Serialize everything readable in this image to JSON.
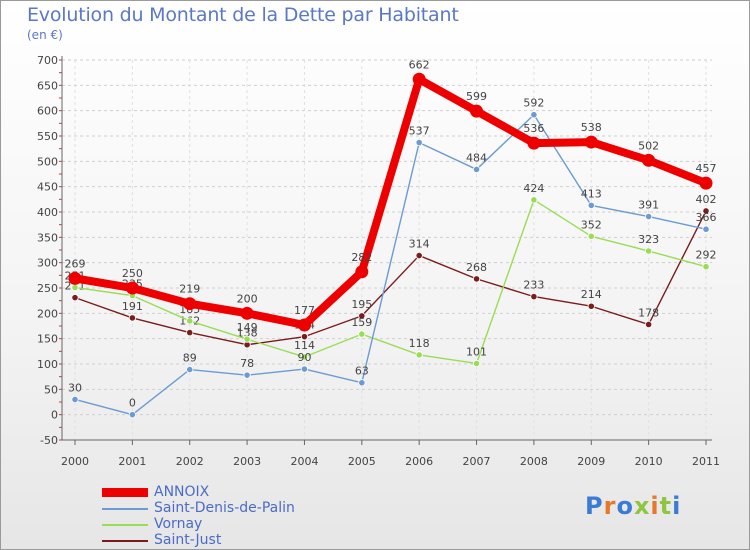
{
  "header": {
    "title": "Evolution du Montant de la Dette par Habitant",
    "subtitle": "(en €)"
  },
  "logo": {
    "letters": [
      "P",
      "r",
      "o",
      "x",
      "i",
      "t",
      "i"
    ],
    "colors": [
      "#3a7bd5",
      "#e8772e",
      "#3a7bd5",
      "#8dc63f",
      "#e8772e",
      "#8dc63f",
      "#3a7bd5"
    ]
  },
  "chart_data": {
    "type": "line",
    "title": "Evolution du Montant de la Dette par Habitant",
    "subtitle": "(en €)",
    "xlabel": "",
    "ylabel": "",
    "x": [
      "2000",
      "2001",
      "2002",
      "2003",
      "2004",
      "2005",
      "2006",
      "2007",
      "2008",
      "2009",
      "2010",
      "2011"
    ],
    "yticks": [
      -50,
      0,
      50,
      100,
      150,
      200,
      250,
      300,
      350,
      400,
      450,
      500,
      550,
      600,
      650,
      700
    ],
    "ylim": [
      -50,
      700
    ],
    "grid": "horizontal dashed",
    "legend": "bottom-left",
    "series": [
      {
        "name": "Saint-Just",
        "color": "#7a1c1c",
        "emphasis": false,
        "values": [
          231,
          191,
          162,
          138,
          154,
          195,
          314,
          268,
          233,
          214,
          178,
          402
        ],
        "labels": [
          "231",
          "191",
          "162",
          "138",
          "154",
          "195",
          "314",
          "268",
          "233",
          "214",
          "178",
          "402"
        ]
      },
      {
        "name": "Vornay",
        "color": "#99dd55",
        "emphasis": false,
        "values": [
          251,
          235,
          185,
          149,
          114,
          159,
          118,
          101,
          424,
          352,
          323,
          292
        ],
        "labels": [
          "251",
          "235",
          "185",
          "149",
          "114",
          "159",
          "118",
          "101",
          "424",
          "352",
          "323",
          "292"
        ]
      },
      {
        "name": "Saint-Denis-de-Palin",
        "color": "#6b9bd2",
        "emphasis": false,
        "values": [
          30,
          0,
          89,
          78,
          90,
          63,
          537,
          484,
          592,
          413,
          391,
          366
        ],
        "labels": [
          "30",
          "0",
          "89",
          "78",
          "90",
          "63",
          "537",
          "484",
          "592",
          "413",
          "391",
          "366"
        ]
      },
      {
        "name": "ANNOIX",
        "color": "#ee0000",
        "emphasis": true,
        "values": [
          269,
          250,
          219,
          200,
          177,
          282,
          662,
          599,
          536,
          538,
          502,
          457
        ],
        "labels": [
          "269",
          "250",
          "219",
          "200",
          "177",
          "282",
          "662",
          "599",
          "536",
          "538",
          "502",
          "457"
        ]
      }
    ]
  },
  "legend": {
    "items": [
      {
        "name": "ANNOIX",
        "color": "#ee0000",
        "width": 9
      },
      {
        "name": "Saint-Denis-de-Palin",
        "color": "#6b9bd2",
        "width": 1.5
      },
      {
        "name": "Vornay",
        "color": "#99dd55",
        "width": 1.5
      },
      {
        "name": "Saint-Just",
        "color": "#7a1c1c",
        "width": 1.5
      }
    ]
  }
}
